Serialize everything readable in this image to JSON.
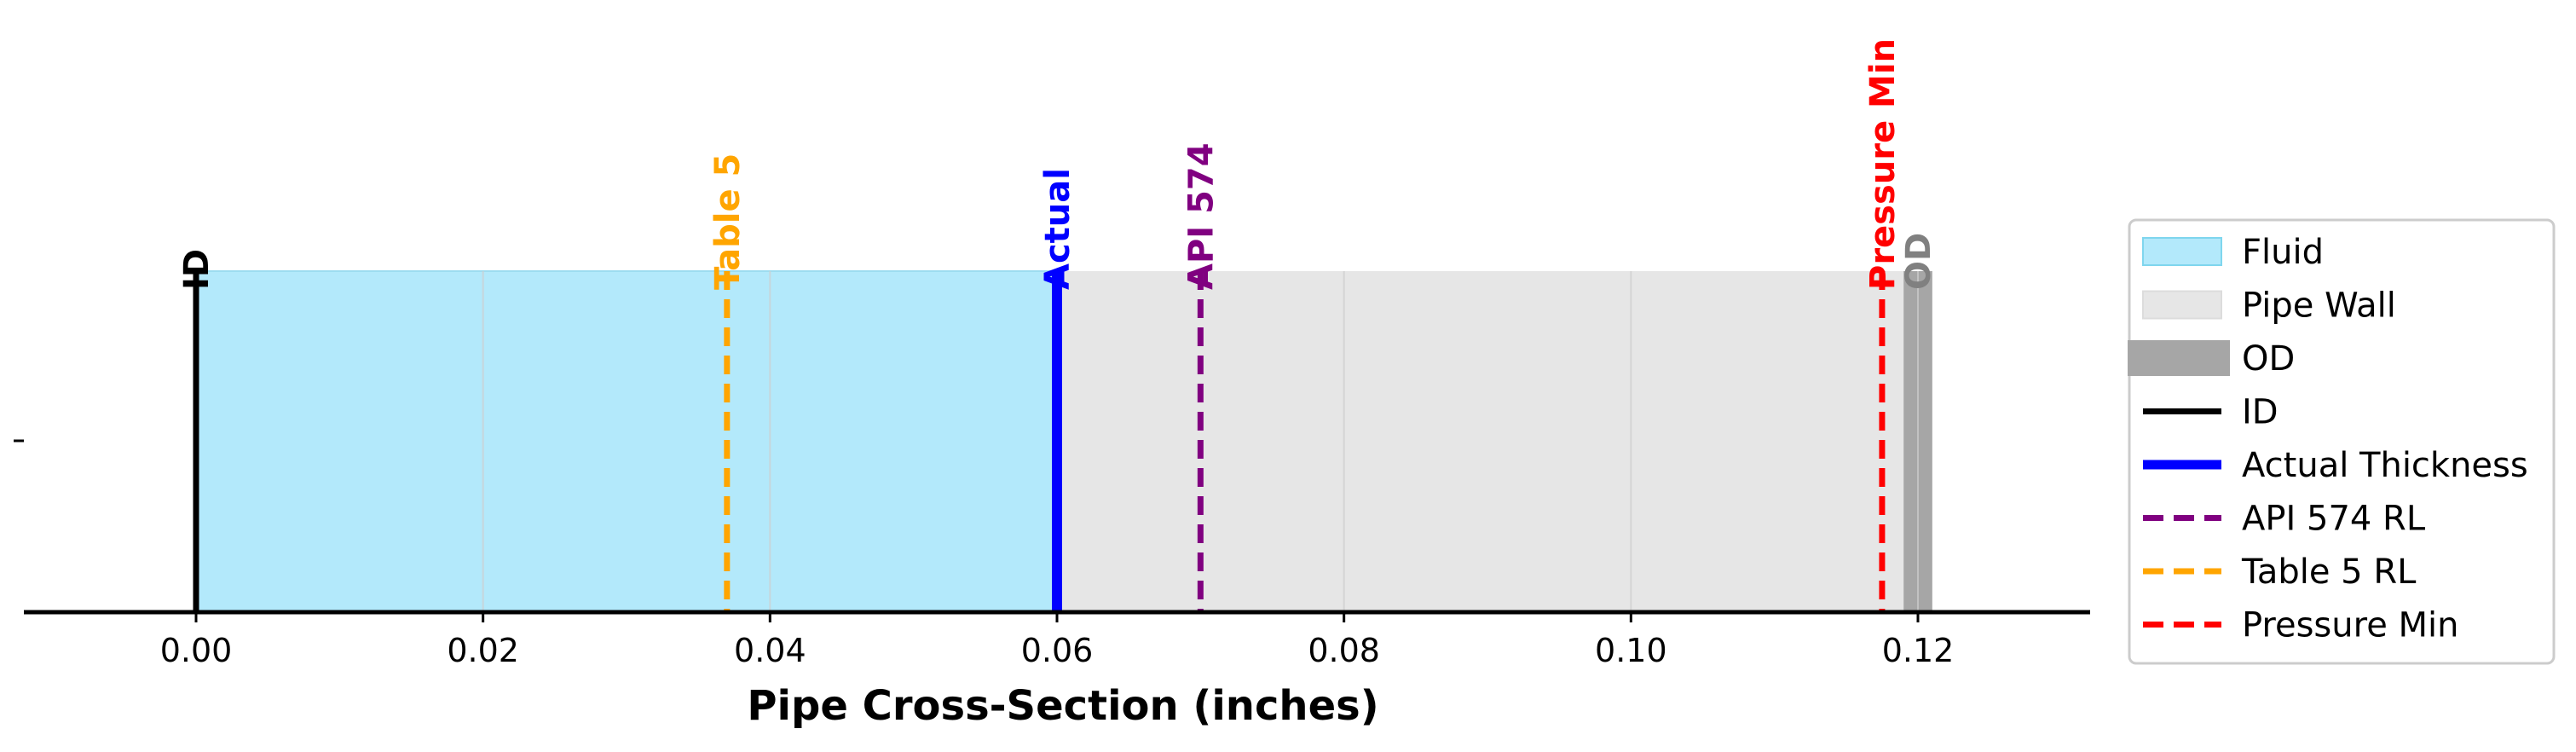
{
  "chart_data": {
    "type": "bar",
    "xlabel": "Pipe Cross-Section (inches)",
    "xlim": [
      -0.012,
      0.132
    ],
    "x_ticks": [
      0.0,
      0.02,
      0.04,
      0.06,
      0.08,
      0.1,
      0.12
    ],
    "x_tick_labels": [
      "0.00",
      "0.02",
      "0.04",
      "0.06",
      "0.08",
      "0.10",
      "0.12"
    ],
    "y_tick_labels": [
      ""
    ],
    "grid": "x-only",
    "legend_position": "right",
    "regions": [
      {
        "name": "Fluid",
        "x_start": 0.0,
        "x_end": 0.06,
        "color": "#b3e9fb"
      },
      {
        "name": "Pipe Wall",
        "x_start": 0.06,
        "x_end": 0.119,
        "color": "#e6e6e6"
      },
      {
        "name": "OD",
        "x_start": 0.119,
        "x_end": 0.121,
        "color": "#a6a6a6"
      }
    ],
    "lines": [
      {
        "name": "ID",
        "label": "ID",
        "x": 0.0,
        "color": "#000000",
        "style": "solid"
      },
      {
        "name": "Actual Thickness",
        "label": "Actual",
        "x": 0.06,
        "color": "#0000ff",
        "style": "solid"
      },
      {
        "name": "API 574 RL",
        "label": "API 574",
        "x": 0.07,
        "color": "#800080",
        "style": "dashed"
      },
      {
        "name": "Table 5 RL",
        "label": "Table 5",
        "x": 0.037,
        "color": "#ffa500",
        "style": "dashed"
      },
      {
        "name": "Pressure Min",
        "label": "Pressure Min",
        "x": 0.1175,
        "color": "#ff0000",
        "style": "dashed"
      }
    ],
    "od_label": {
      "text": "OD",
      "x": 0.12,
      "color": "#808080"
    },
    "legend": [
      {
        "text": "Fluid",
        "kind": "patch",
        "color": "#b3e9fb",
        "edge": "#7fd6ee"
      },
      {
        "text": "Pipe Wall",
        "kind": "patch",
        "color": "#e6e6e6",
        "edge": "#dcdcdc"
      },
      {
        "text": "OD",
        "kind": "thick",
        "color": "#a6a6a6"
      },
      {
        "text": "ID",
        "kind": "line",
        "color": "#000000"
      },
      {
        "text": "Actual Thickness",
        "kind": "line-bold",
        "color": "#0000ff"
      },
      {
        "text": "API 574 RL",
        "kind": "dashed",
        "color": "#800080"
      },
      {
        "text": "Table 5 RL",
        "kind": "dashed",
        "color": "#ffa500"
      },
      {
        "text": "Pressure Min",
        "kind": "dashed",
        "color": "#ff0000"
      }
    ]
  }
}
